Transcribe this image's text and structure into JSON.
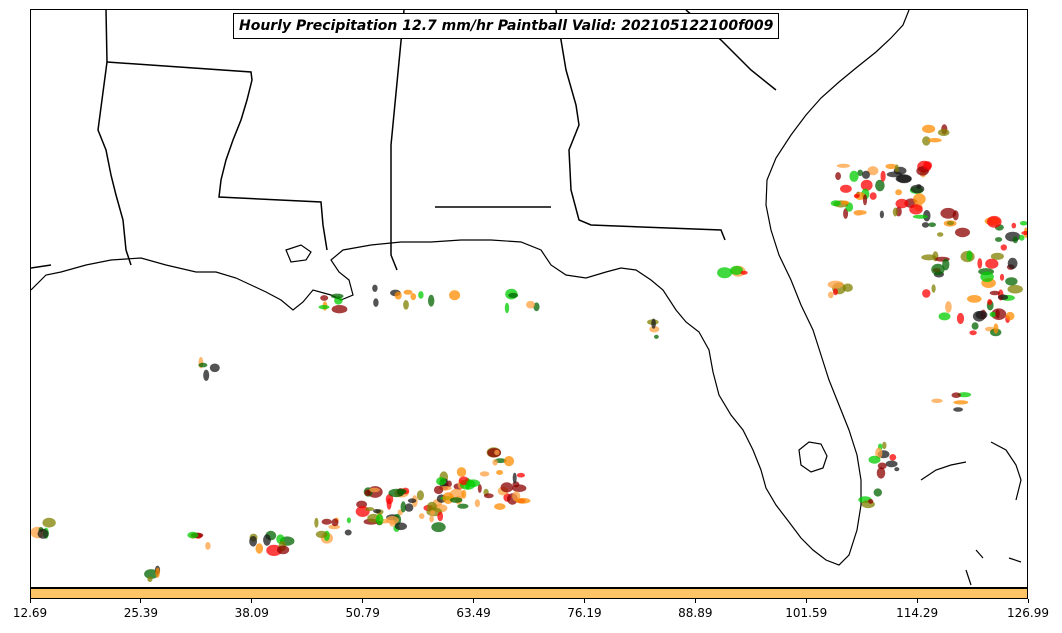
{
  "title": "Hourly Precipitation 12.7 mm/hr Paintball Valid: 202105122100f009",
  "colorbar": {
    "color": "#ffc466",
    "ticks": [
      "12.69",
      "25.39",
      "38.09",
      "50.79",
      "63.49",
      "76.19",
      "88.89",
      "101.59",
      "114.29",
      "126.99"
    ]
  },
  "paint_colors": {
    "dark_red": "#8b0000",
    "red": "#ff0000",
    "orange": "#ff8c00",
    "light_orange": "#ffa040",
    "green": "#00cc00",
    "dark_green": "#006400",
    "olive": "#808000",
    "black": "#1a1a1a"
  },
  "map_features": [
    "coastline",
    "state-borders"
  ]
}
